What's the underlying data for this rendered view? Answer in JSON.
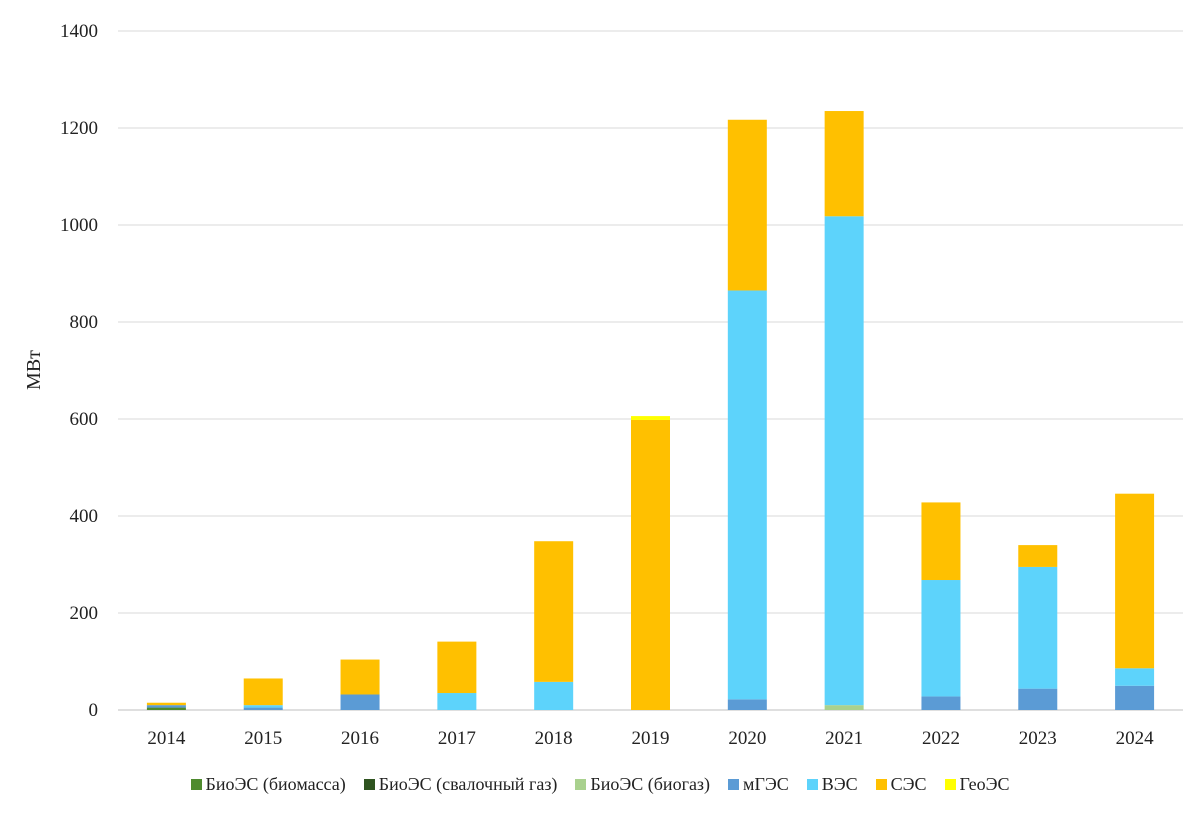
{
  "chart_data": {
    "type": "bar",
    "stacked": true,
    "title": "",
    "xlabel": "",
    "ylabel": "МВт",
    "ylim": [
      0,
      1400
    ],
    "yticks": [
      0,
      200,
      400,
      600,
      800,
      1000,
      1200,
      1400
    ],
    "grid": true,
    "legend_position": "bottom",
    "categories": [
      "2014",
      "2015",
      "2016",
      "2017",
      "2018",
      "2019",
      "2020",
      "2021",
      "2022",
      "2023",
      "2024"
    ],
    "series": [
      {
        "name": "БиоЭС (биомасса)",
        "color": "#4e8a2e",
        "values": [
          5,
          0,
          0,
          0,
          0,
          0,
          0,
          0,
          0,
          0,
          0
        ]
      },
      {
        "name": "БиоЭС (свалочный газ)",
        "color": "#2f5420",
        "values": [
          0,
          0,
          0,
          0,
          0,
          0,
          0,
          0,
          0,
          0,
          0
        ]
      },
      {
        "name": "БиоЭС (биогаз)",
        "color": "#a9d18e",
        "values": [
          0,
          0,
          0,
          0,
          0,
          0,
          0,
          10,
          0,
          0,
          0
        ]
      },
      {
        "name": "мГЭС",
        "color": "#5b9bd5",
        "values": [
          5,
          5,
          32,
          0,
          0,
          0,
          22,
          0,
          28,
          44,
          50
        ]
      },
      {
        "name": "ВЭС",
        "color": "#5dd3fb",
        "values": [
          0,
          5,
          0,
          35,
          58,
          0,
          843,
          1008,
          240,
          251,
          36
        ]
      },
      {
        "name": "СЭС",
        "color": "#ffc000",
        "values": [
          5,
          55,
          72,
          106,
          290,
          598,
          352,
          217,
          160,
          45,
          360
        ]
      },
      {
        "name": "ГеоЭС",
        "color": "#ffff00",
        "values": [
          0,
          0,
          0,
          0,
          0,
          8,
          0,
          0,
          0,
          0,
          0
        ]
      }
    ]
  }
}
